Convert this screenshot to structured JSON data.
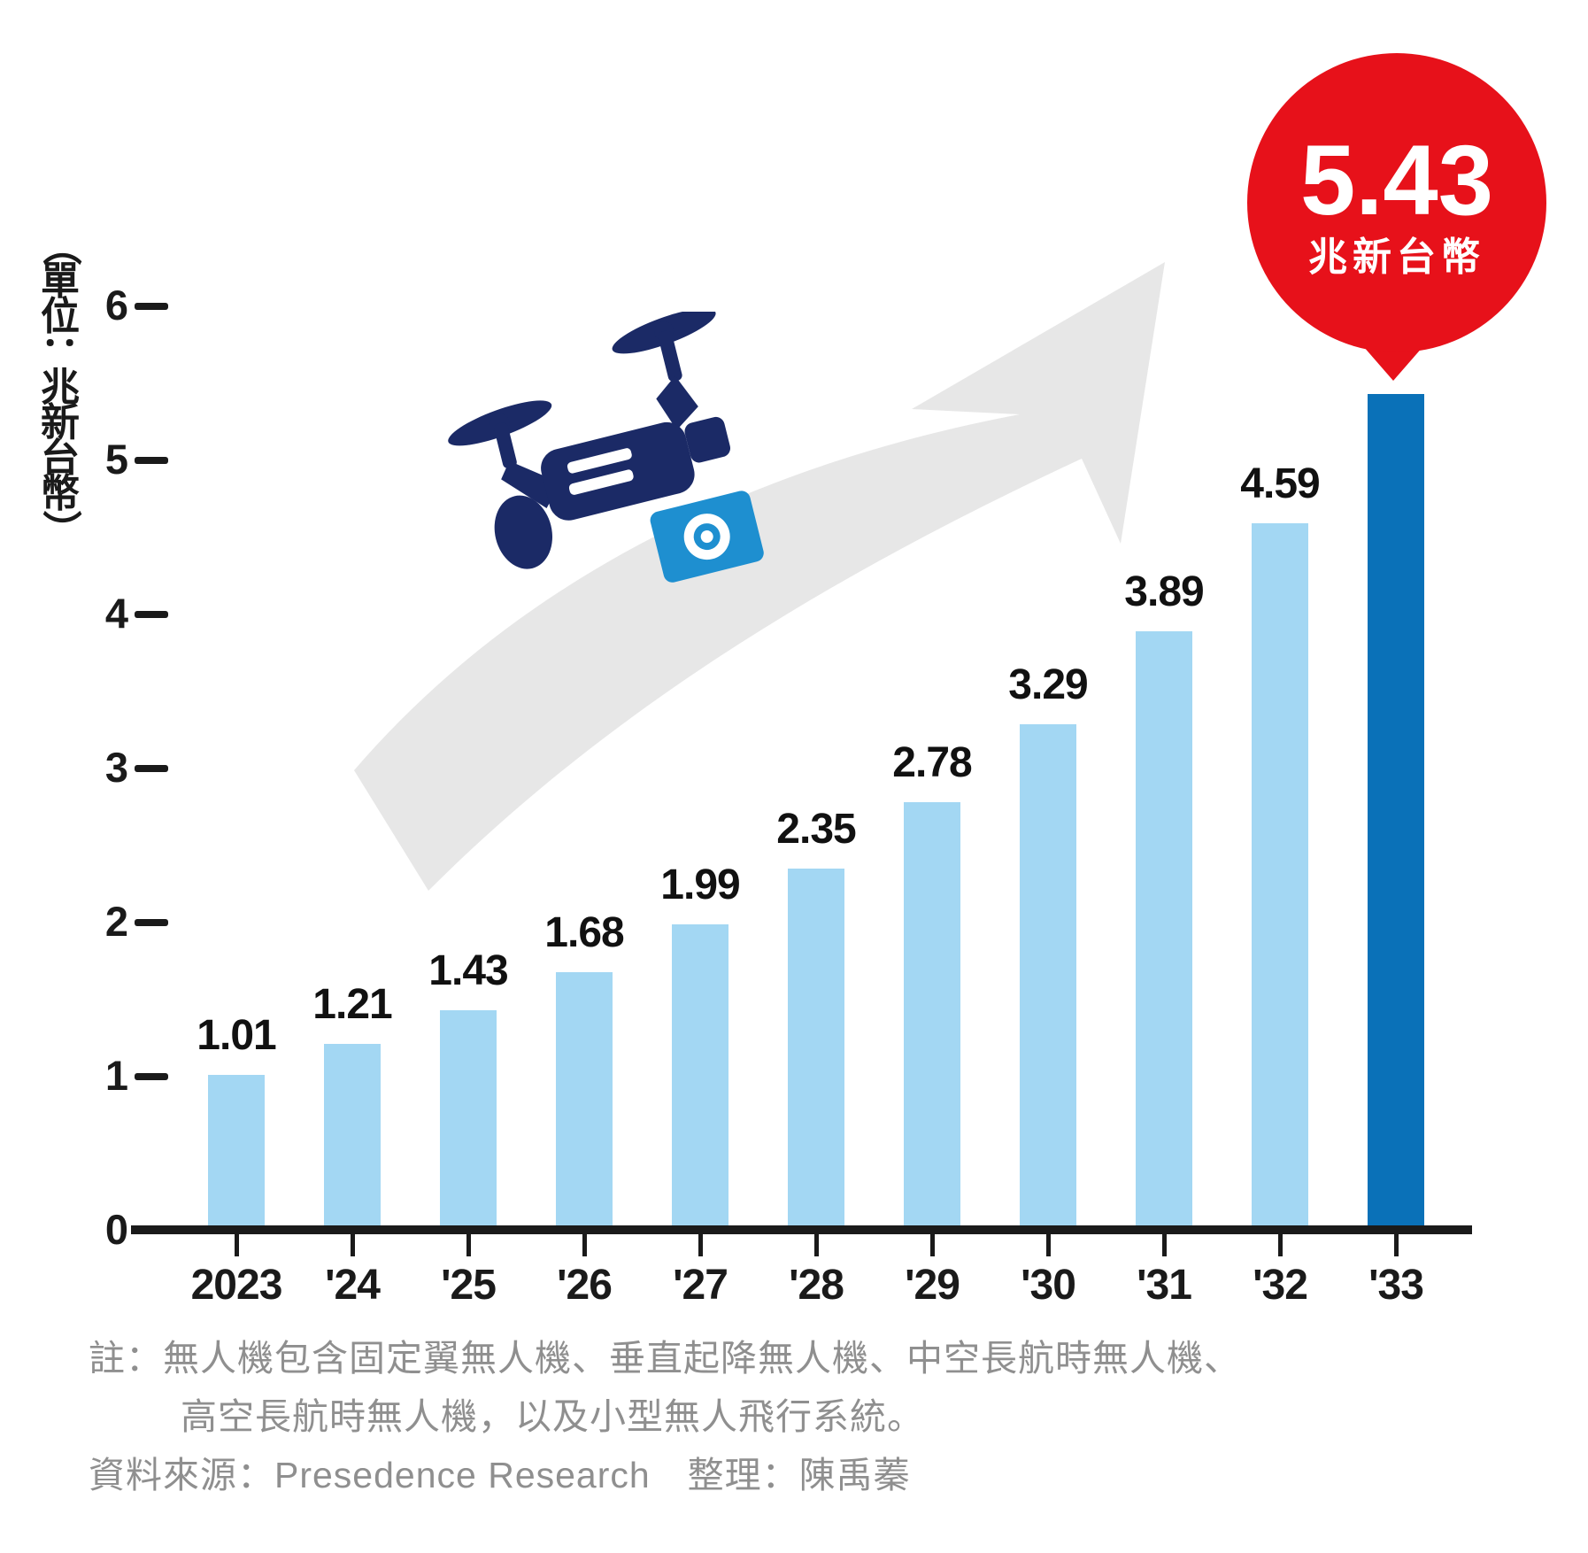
{
  "chart_data": {
    "type": "bar",
    "title": "",
    "y_axis_unit_label": "（單位：兆新台幣）",
    "y_axis_unit_chars": [
      "（",
      "單",
      "位",
      "：",
      "兆",
      "新",
      "台",
      "幣",
      "）"
    ],
    "categories": [
      "2023",
      "'24",
      "'25",
      "'26",
      "'27",
      "'28",
      "'29",
      "'30",
      "'31",
      "'32",
      "'33"
    ],
    "values": [
      1.01,
      1.21,
      1.43,
      1.68,
      1.99,
      2.35,
      2.78,
      3.29,
      3.89,
      4.59,
      5.43
    ],
    "value_labels": [
      "1.01",
      "1.21",
      "1.43",
      "1.68",
      "1.99",
      "2.35",
      "2.78",
      "3.29",
      "3.89",
      "4.59",
      "5.43"
    ],
    "ylim": [
      0,
      6
    ],
    "yticks": [
      0,
      1,
      2,
      3,
      4,
      5,
      6
    ],
    "grid": false,
    "legend_position": "none",
    "bar_color": "#a3d7f3",
    "highlight_index": 10,
    "highlight_bar_color": "#0a71b8",
    "callout": {
      "value": "5.43",
      "unit": "兆新台幣",
      "bg_color": "#e7111a",
      "text_color": "#ffffff"
    }
  },
  "icons": {
    "drone": "drone-icon",
    "growth_arrow": "growth-arrow-icon"
  },
  "colors": {
    "axis": "#1a1a1a",
    "tick_text": "#1a1a1a",
    "value_text": "#111111",
    "arrow": "#e7e7e7",
    "drone_body": "#1b2a66",
    "drone_camera": "#1e8fd0",
    "note_text": "#8f8f8f"
  },
  "footer": {
    "note_line1": "註：無人機包含固定翼無人機、垂直起降無人機、中空長航時無人機、",
    "note_line2": "高空長航時無人機，以及小型無人飛行系統。",
    "source_line": "資料來源：Presedence Research　整理：陳禹蓁"
  }
}
